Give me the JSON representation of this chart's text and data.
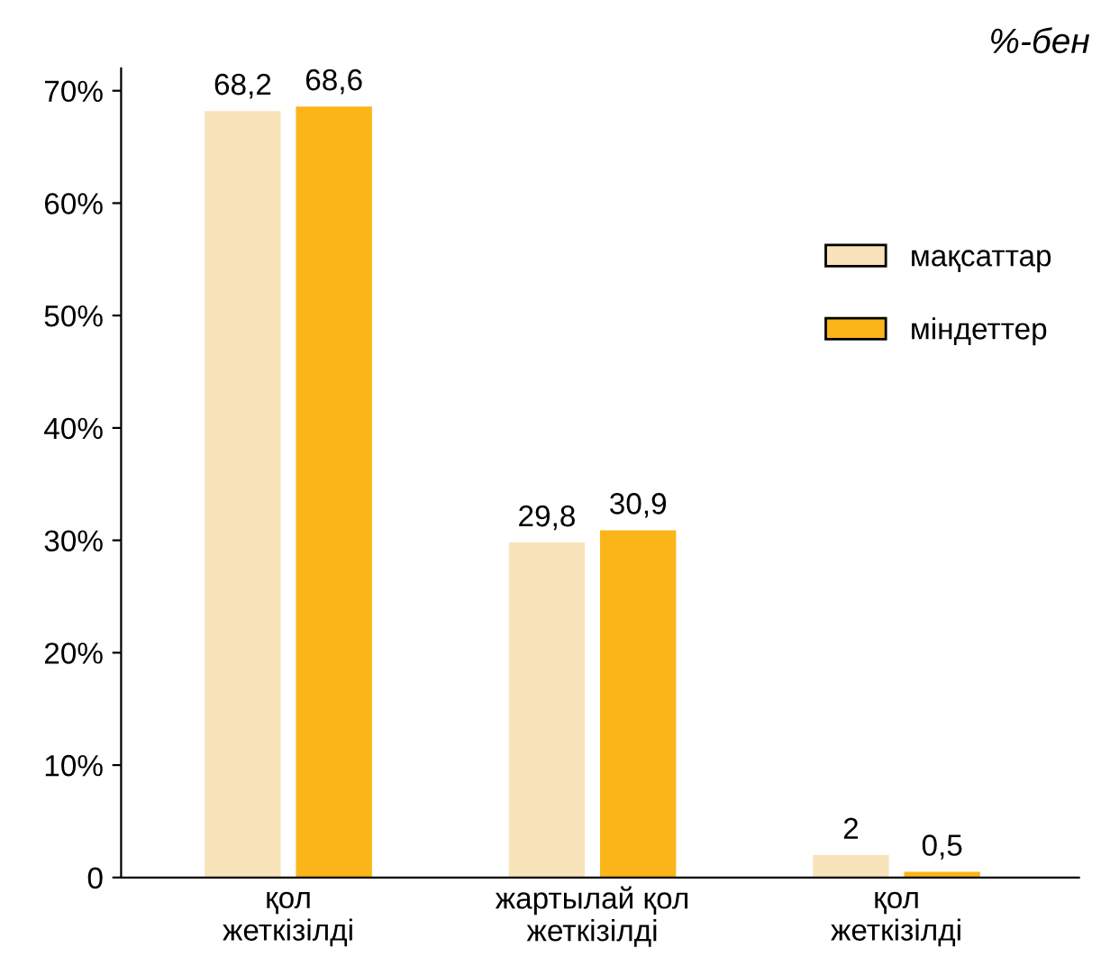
{
  "chart_data": {
    "type": "bar",
    "categories": [
      "қол\nжеткізілді",
      "жартылай қол\nжеткізілді",
      "қол\nжеткізілді"
    ],
    "series": [
      {
        "name": "мақсаттар",
        "color": "#f9e3ba",
        "values": [
          68.2,
          29.8,
          2
        ],
        "value_labels": [
          "68,2",
          "29,8",
          "2"
        ]
      },
      {
        "name": "міндеттер",
        "color": "#fbb519",
        "values": [
          68.6,
          30.9,
          0.5
        ],
        "value_labels": [
          "68,6",
          "30,9",
          "0,5"
        ]
      }
    ],
    "ylim": [
      0,
      72
    ],
    "yticks": [
      0,
      {
        "value": 10,
        "label": "10%"
      },
      {
        "value": 20,
        "label": "20%"
      },
      {
        "value": 30,
        "label": "30%"
      },
      {
        "value": 40,
        "label": "40%"
      },
      {
        "value": 50,
        "label": "50%"
      },
      {
        "value": 60,
        "label": "60%"
      },
      {
        "value": 70,
        "label": "70%"
      }
    ],
    "annotations": [
      "%-бен"
    ],
    "legend": "right",
    "grid": false
  }
}
